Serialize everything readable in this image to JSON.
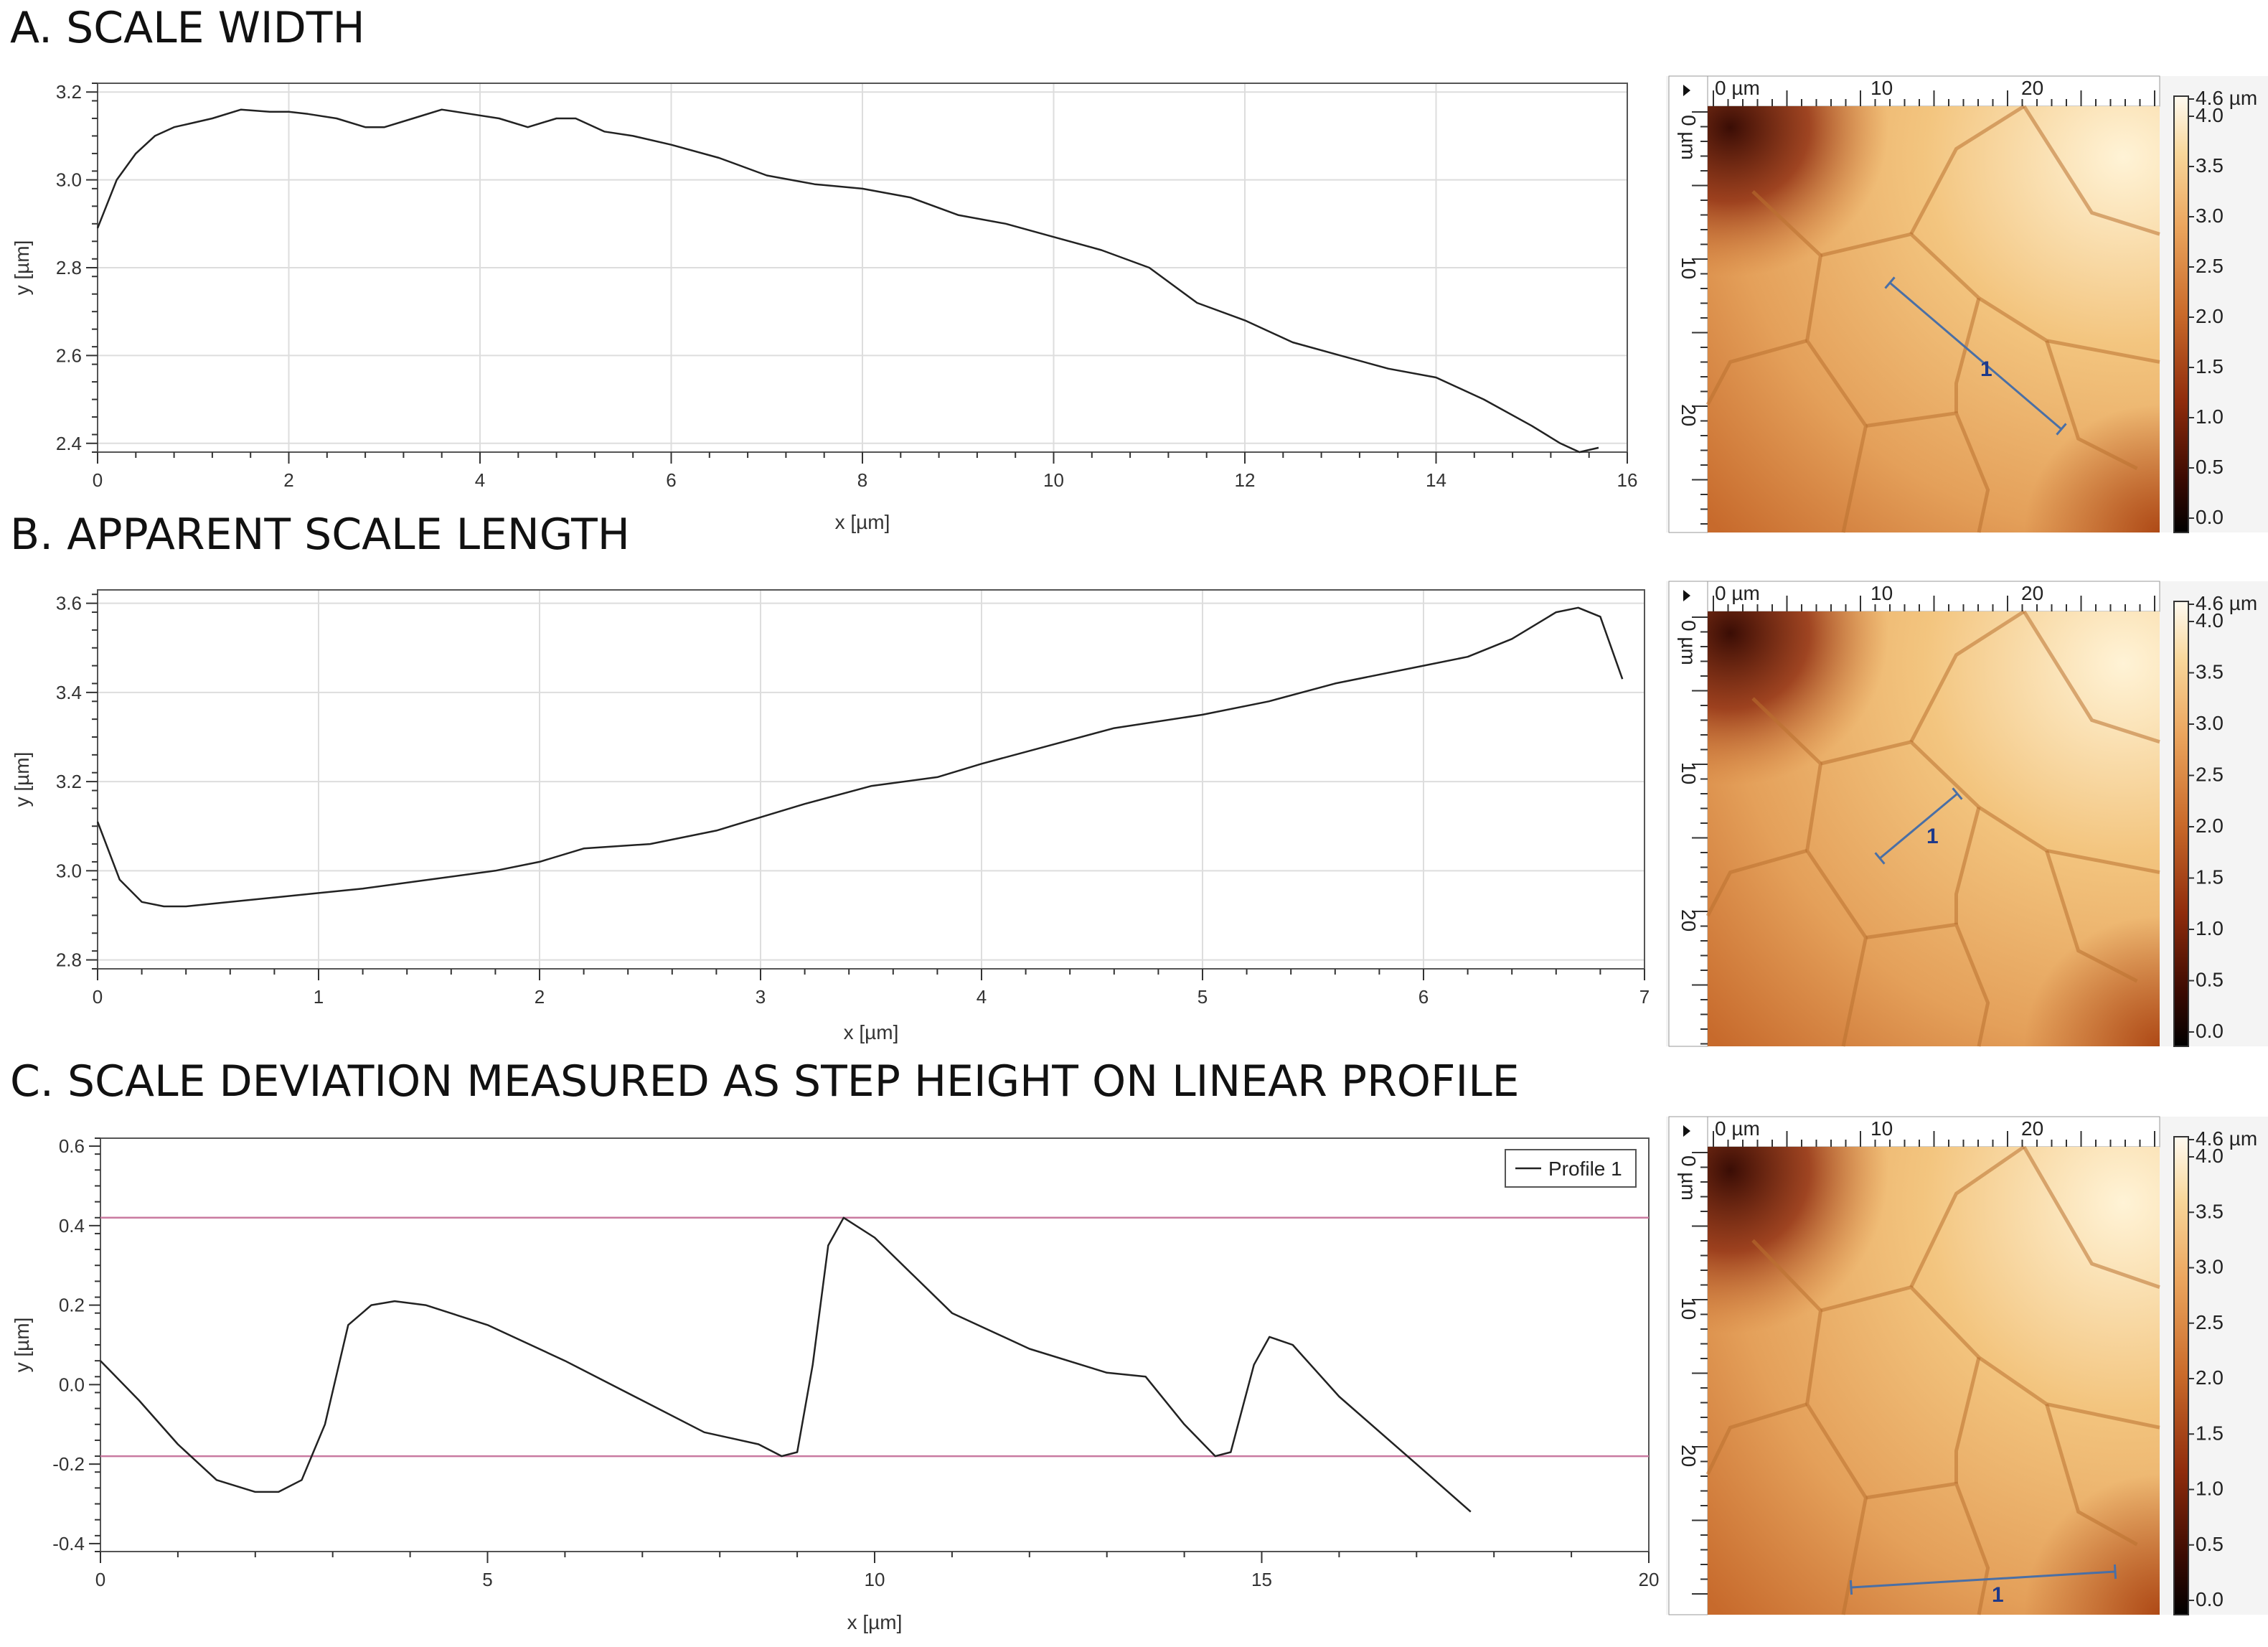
{
  "panels": [
    {
      "title": "A. SCALE WIDTH"
    },
    {
      "title": "B. APPARENT SCALE LENGTH"
    },
    {
      "title": "C. SCALE DEVIATION MEASURED AS STEP HEIGHT ON LINEAR PROFILE"
    }
  ],
  "chart_data": [
    {
      "type": "line",
      "title": "A. SCALE WIDTH",
      "xlabel": "x [µm]",
      "ylabel": "y [µm]",
      "xlim": [
        0,
        16
      ],
      "ylim": [
        2.38,
        3.22
      ],
      "xticks": [
        0,
        2,
        4,
        6,
        8,
        10,
        12,
        14,
        16
      ],
      "yticks": [
        2.4,
        2.6,
        2.8,
        3.0,
        3.2
      ],
      "grid": true,
      "series": [
        {
          "x": [
            0,
            0.2,
            0.4,
            0.6,
            0.8,
            1.0,
            1.2,
            1.5,
            1.8,
            2.0,
            2.2,
            2.5,
            2.8,
            3.0,
            3.3,
            3.6,
            3.9,
            4.2,
            4.5,
            4.8,
            5.0,
            5.3,
            5.6,
            6.0,
            6.5,
            7.0,
            7.5,
            8.0,
            8.5,
            9.0,
            9.5,
            10.0,
            10.5,
            11.0,
            11.5,
            12.0,
            12.5,
            13.0,
            13.5,
            14.0,
            14.5,
            15.0,
            15.3,
            15.5,
            15.7
          ],
          "y": [
            2.89,
            3.0,
            3.06,
            3.1,
            3.12,
            3.13,
            3.14,
            3.16,
            3.155,
            3.155,
            3.15,
            3.14,
            3.12,
            3.12,
            3.14,
            3.16,
            3.15,
            3.14,
            3.12,
            3.14,
            3.14,
            3.11,
            3.1,
            3.08,
            3.05,
            3.01,
            2.99,
            2.98,
            2.96,
            2.92,
            2.9,
            2.87,
            2.84,
            2.8,
            2.72,
            2.68,
            2.63,
            2.6,
            2.57,
            2.55,
            2.5,
            2.44,
            2.4,
            2.38,
            2.39
          ]
        }
      ]
    },
    {
      "type": "line",
      "title": "B. APPARENT SCALE LENGTH",
      "xlabel": "x [µm]",
      "ylabel": "y [µm]",
      "xlim": [
        0,
        7
      ],
      "ylim": [
        2.78,
        3.63
      ],
      "xticks": [
        0,
        1,
        2,
        3,
        4,
        5,
        6,
        7
      ],
      "yticks": [
        2.8,
        3.0,
        3.2,
        3.4,
        3.6
      ],
      "grid": true,
      "series": [
        {
          "x": [
            0,
            0.1,
            0.2,
            0.3,
            0.4,
            0.6,
            0.8,
            1.0,
            1.2,
            1.5,
            1.8,
            2.0,
            2.2,
            2.5,
            2.8,
            3.0,
            3.2,
            3.5,
            3.8,
            4.0,
            4.3,
            4.6,
            5.0,
            5.3,
            5.6,
            6.0,
            6.2,
            6.4,
            6.6,
            6.7,
            6.8,
            6.9
          ],
          "y": [
            3.11,
            2.98,
            2.93,
            2.92,
            2.92,
            2.93,
            2.94,
            2.95,
            2.96,
            2.98,
            3.0,
            3.02,
            3.05,
            3.06,
            3.09,
            3.12,
            3.15,
            3.19,
            3.21,
            3.24,
            3.28,
            3.32,
            3.35,
            3.38,
            3.42,
            3.46,
            3.48,
            3.52,
            3.58,
            3.59,
            3.57,
            3.43
          ]
        }
      ]
    },
    {
      "type": "line",
      "title": "C. SCALE DEVIATION MEASURED AS STEP HEIGHT ON LINEAR PROFILE",
      "xlabel": "x [µm]",
      "ylabel": "y [µm]",
      "xlim": [
        0,
        20
      ],
      "ylim": [
        -0.42,
        0.62
      ],
      "xticks": [
        0,
        5,
        10,
        15,
        20
      ],
      "yticks": [
        -0.4,
        -0.2,
        0.0,
        0.2,
        0.4,
        0.6
      ],
      "grid": false,
      "legend": "top-right",
      "reference_lines": [
        0.42,
        -0.18
      ],
      "series": [
        {
          "name": "Profile 1",
          "x": [
            0,
            0.5,
            1.0,
            1.5,
            2.0,
            2.3,
            2.6,
            2.9,
            3.2,
            3.5,
            3.8,
            4.2,
            5.0,
            6.0,
            7.0,
            7.8,
            8.5,
            8.8,
            9.0,
            9.2,
            9.4,
            9.6,
            10.0,
            11.0,
            12.0,
            13.0,
            13.5,
            14.0,
            14.4,
            14.6,
            14.9,
            15.1,
            15.4,
            16.0,
            17.0,
            17.7
          ],
          "y": [
            0.06,
            -0.04,
            -0.15,
            -0.24,
            -0.27,
            -0.27,
            -0.24,
            -0.1,
            0.15,
            0.2,
            0.21,
            0.2,
            0.15,
            0.06,
            -0.04,
            -0.12,
            -0.15,
            -0.18,
            -0.17,
            0.05,
            0.35,
            0.42,
            0.37,
            0.18,
            0.09,
            0.03,
            0.02,
            -0.1,
            -0.18,
            -0.17,
            0.05,
            0.12,
            0.1,
            -0.03,
            -0.2,
            -0.32
          ]
        }
      ]
    }
  ],
  "maps": [
    {
      "top_label": "0 µm",
      "top_ticks": [
        "10",
        "20"
      ],
      "left_ticks": [
        "0 µm",
        "10",
        "20"
      ],
      "profile_label": "1",
      "colorbar": [
        "4.6 µm",
        "4.0",
        "3.5",
        "3.0",
        "2.5",
        "2.0",
        "1.5",
        "1.0",
        "0.5",
        "0.0"
      ]
    },
    {
      "top_label": "0 µm",
      "top_ticks": [
        "10",
        "20"
      ],
      "left_ticks": [
        "0 µm",
        "10",
        "20"
      ],
      "profile_label": "1",
      "colorbar": [
        "4.6 µm",
        "4.0",
        "3.5",
        "3.0",
        "2.5",
        "2.0",
        "1.5",
        "1.0",
        "0.5",
        "0.0"
      ]
    },
    {
      "top_label": "0 µm",
      "top_ticks": [
        "10",
        "20"
      ],
      "left_ticks": [
        "0 µm",
        "10",
        "20"
      ],
      "profile_label": "1",
      "colorbar": [
        "4.6 µm",
        "4.0",
        "3.5",
        "3.0",
        "2.5",
        "2.0",
        "1.5",
        "1.0",
        "0.5",
        "0.0"
      ]
    }
  ],
  "colors": {
    "line": "#222222",
    "grid": "#dddddd",
    "reference": "#c97aa0",
    "profile": "#4a6fa5",
    "profile_label": "#1f3a8a"
  }
}
